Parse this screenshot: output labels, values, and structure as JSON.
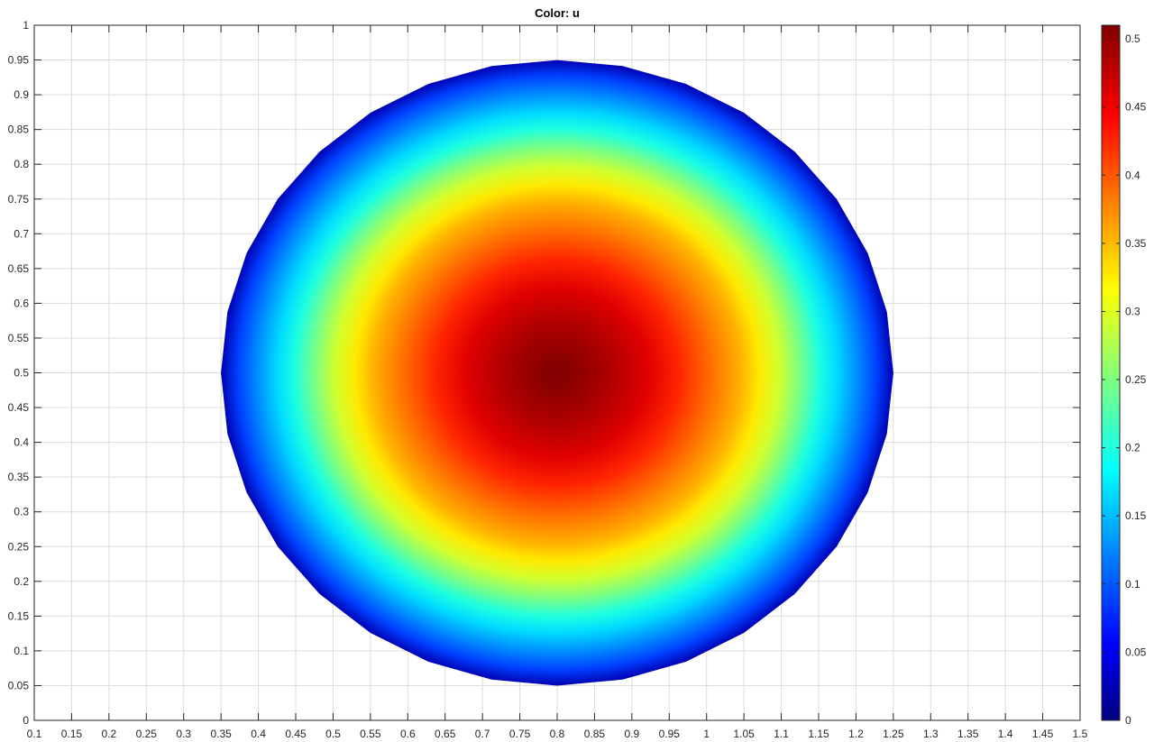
{
  "chart_data": {
    "type": "heatmap",
    "title": "Color: u",
    "xlabel": "",
    "ylabel": "",
    "xlim": [
      0.1,
      1.5
    ],
    "ylim": [
      0,
      1
    ],
    "grid": true,
    "x_ticks": [
      "0.1",
      "0.15",
      "0.2",
      "0.25",
      "0.3",
      "0.35",
      "0.4",
      "0.45",
      "0.5",
      "0.55",
      "0.6",
      "0.65",
      "0.7",
      "0.75",
      "0.8",
      "0.85",
      "0.9",
      "0.95",
      "1",
      "1.05",
      "1.1",
      "1.15",
      "1.2",
      "1.25",
      "1.3",
      "1.35",
      "1.4",
      "1.45",
      "1.5"
    ],
    "y_ticks": [
      "0",
      "0.05",
      "0.1",
      "0.15",
      "0.2",
      "0.25",
      "0.3",
      "0.35",
      "0.4",
      "0.45",
      "0.5",
      "0.55",
      "0.6",
      "0.65",
      "0.7",
      "0.75",
      "0.8",
      "0.85",
      "0.9",
      "0.95",
      "1"
    ],
    "domain_center": [
      0.8,
      0.5
    ],
    "domain_radius_x": 0.45,
    "domain_radius_y": 0.45,
    "domain_polygon_sides": 32,
    "max_value": 0.51,
    "min_value": 0,
    "colormap": "jet",
    "colorbar": {
      "range": [
        0,
        0.51
      ],
      "ticks": [
        "0",
        "0.05",
        "0.1",
        "0.15",
        "0.2",
        "0.25",
        "0.3",
        "0.35",
        "0.4",
        "0.45",
        "0.5"
      ],
      "position": "right"
    }
  }
}
